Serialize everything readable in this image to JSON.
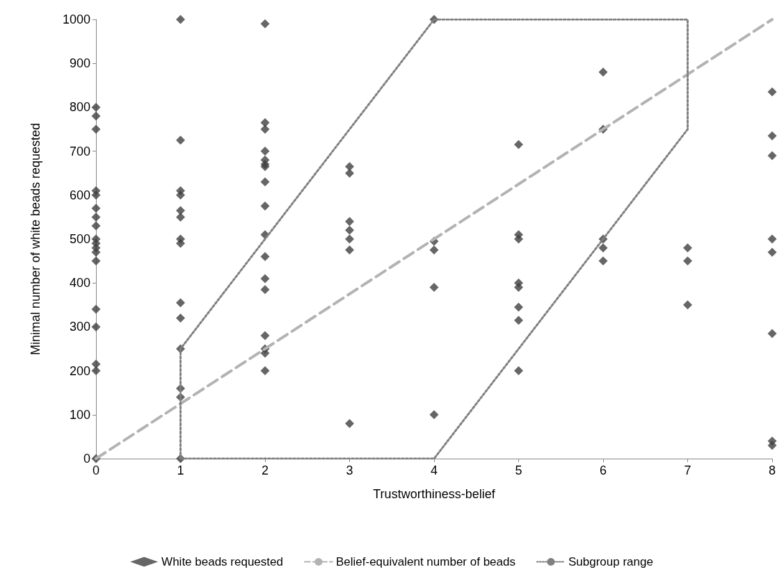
{
  "chart_data": {
    "type": "scatter",
    "xlabel": "Trustworthiness-belief",
    "ylabel": "Minimal number of white beads requested",
    "xlim": [
      0,
      8
    ],
    "xticks": [
      0,
      1,
      2,
      3,
      4,
      5,
      6,
      7,
      8
    ],
    "ylim": [
      0,
      1000
    ],
    "yticks": [
      0,
      100,
      200,
      300,
      400,
      500,
      600,
      700,
      800,
      900,
      1000
    ],
    "grid": false,
    "legend": "bottom",
    "series": [
      {
        "name": "White beads requested",
        "type": "scatter",
        "marker": "diamond",
        "color": "#404040",
        "x": [
          0,
          0,
          0,
          0,
          0,
          0,
          0,
          0,
          0,
          0,
          0,
          0,
          0,
          0,
          0,
          0,
          0,
          0,
          1,
          1,
          1,
          1,
          1,
          1,
          1,
          1,
          1,
          1,
          1,
          1,
          1,
          1,
          2,
          2,
          2,
          2,
          2,
          2,
          2,
          2,
          2,
          2,
          2,
          2,
          2,
          2,
          2,
          2,
          2,
          3,
          3,
          3,
          3,
          3,
          3,
          3,
          4,
          4,
          4,
          4,
          4,
          5,
          5,
          5,
          5,
          5,
          5,
          5,
          5,
          6,
          6,
          6,
          6,
          6,
          7,
          7,
          7,
          8,
          8,
          8,
          8,
          8,
          8,
          8,
          8
        ],
        "values": [
          800,
          780,
          750,
          610,
          600,
          570,
          550,
          530,
          500,
          490,
          480,
          470,
          450,
          340,
          300,
          215,
          200,
          0,
          1000,
          725,
          610,
          600,
          565,
          550,
          500,
          490,
          355,
          320,
          250,
          160,
          140,
          0,
          990,
          765,
          750,
          700,
          680,
          670,
          665,
          630,
          575,
          510,
          460,
          410,
          385,
          280,
          250,
          240,
          200,
          665,
          650,
          540,
          520,
          500,
          475,
          80,
          1000,
          495,
          475,
          390,
          100,
          715,
          510,
          500,
          400,
          390,
          345,
          315,
          200,
          880,
          750,
          500,
          480,
          450,
          480,
          450,
          350,
          835,
          735,
          690,
          500,
          470,
          285,
          40,
          30
        ]
      },
      {
        "name": "Belief-equivalent number of beads",
        "type": "line",
        "line_style": "dashed",
        "color": "#b3b3b3",
        "x": [
          0,
          8
        ],
        "values": [
          0,
          1000
        ]
      },
      {
        "name": "Subgroup range",
        "type": "line",
        "line_style": "dotted",
        "color": "#808080",
        "x": [
          1,
          1,
          4,
          7,
          7
        ],
        "values": [
          0,
          250,
          1000,
          1000,
          750
        ]
      },
      {
        "type": "line",
        "line_style": "dotted",
        "color": "#808080",
        "x": [
          1,
          4,
          7
        ],
        "values": [
          0,
          0,
          750
        ]
      }
    ]
  }
}
